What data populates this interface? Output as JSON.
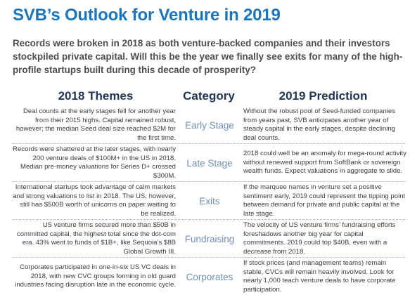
{
  "header": {
    "title": "SVB’s Outlook for Venture in 2019",
    "intro": "Records were broken in 2018 as both venture-backed companies and their investors stockpiled private capital. Will this be the year we finally see exits for many of the high-profile startups built during this decade of prosperity?"
  },
  "table": {
    "columns": [
      "2018 Themes",
      "Category",
      "2019 Prediction"
    ],
    "rows": [
      [
        "Deal counts at the early stages fell for another year from their 2015 highs. Capital remained robust, however; the median Seed deal size reached $2M for the first time.",
        "Early Stage",
        "Without the robust pool of Seed-funded companies from years past, SVB anticipates another year of steady capital in the early stages, despite declining deal counts."
      ],
      [
        "Records were shattered at the later stages, with nearly 200 venture deals of $100M+ in the US in 2018. Median pre-money valuations for Series D+ crossed $300M.",
        "Late Stage",
        "2018 could well be an anomaly for mega-round activity without renewed support from SoftBank or sovereign wealth funds. Expect valuations in aggregate to slide."
      ],
      [
        "International startups took advantage of calm markets and strong valuations to list in 2018. The US, however, still has $500B worth of unicorns on paper waiting to be realized.",
        "Exits",
        "If the marquee names in venture set a positive sentiment early, 2019 could represent the tipping point between demand for private and public capital at the late stage."
      ],
      [
        "US venture firms secured more than $50B in committed capital, the highest total since the dot-com era. 43% went to funds of $1B+, like Sequoia’s $8B Global Growth III.",
        "Fundraising",
        "The velocity of US venture firms’ fundraising efforts foreshadows another big year for capital commitments. 2019 could top $40B, even with a decrease from 2018."
      ],
      [
        "Corporates participated in one-in-six US VC deals in 2018, with new CVC groups forming in old guard industries facing disruption late in the economic cycle.",
        "Corporates",
        "If stock prices (and management teams) remain stable, CVCs will remain heavily involved. Look for nearly 1,000 teach venture deals to have corporate participation."
      ]
    ]
  }
}
